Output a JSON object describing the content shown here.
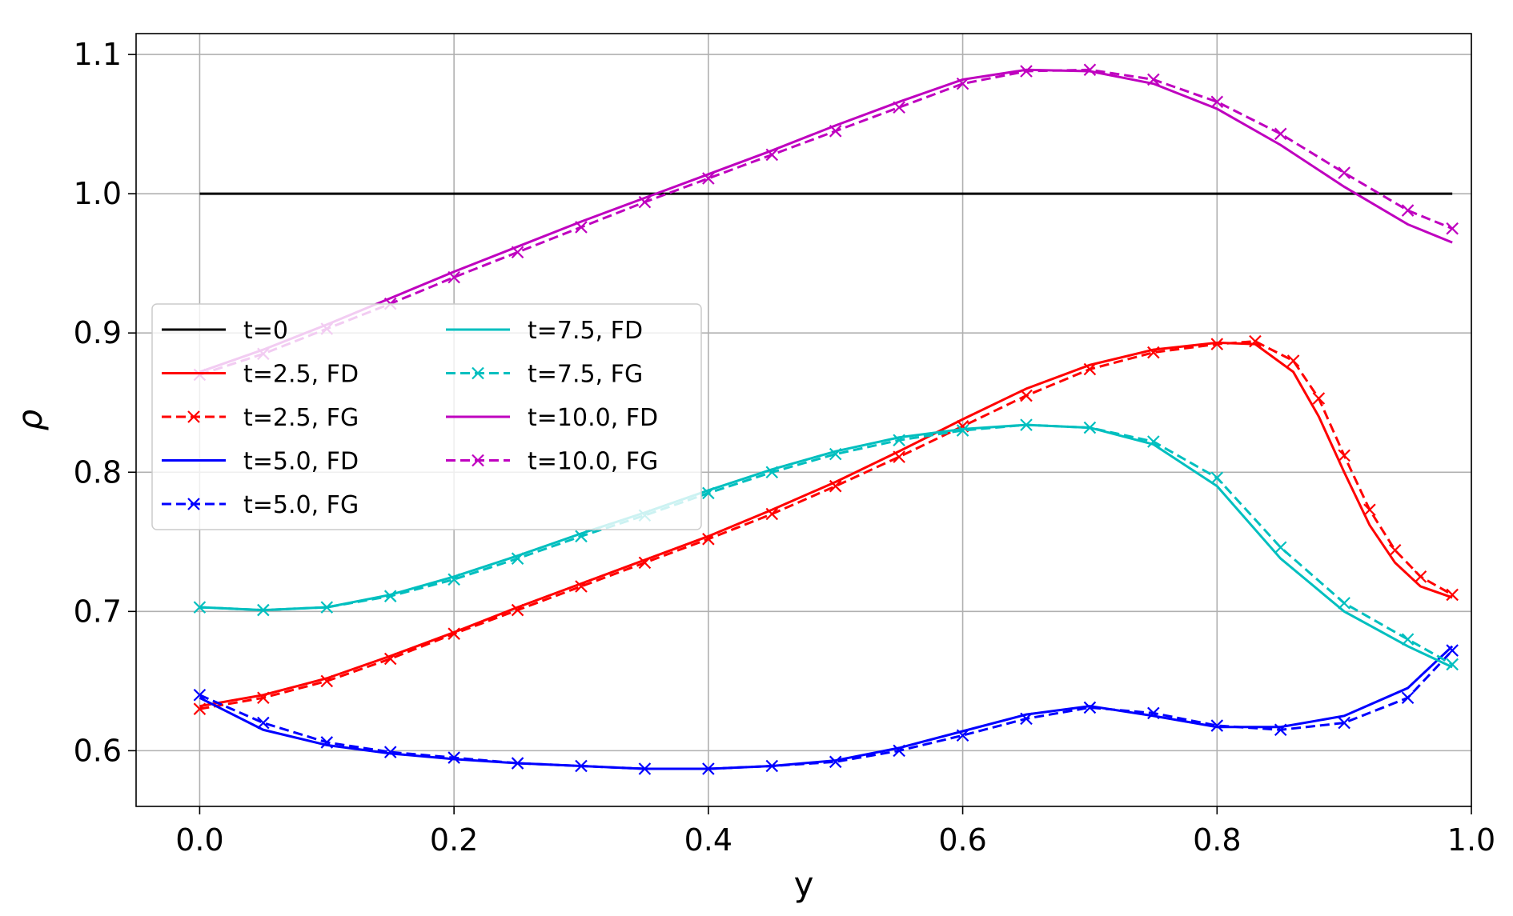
{
  "chart_data": {
    "type": "line",
    "title": "",
    "xlabel": "y",
    "ylabel": "ρ",
    "xlim": [
      -0.05,
      1.0
    ],
    "ylim": [
      0.56,
      1.115
    ],
    "xticks": [
      "0.0",
      "0.2",
      "0.4",
      "0.6",
      "0.8",
      "1.0"
    ],
    "yticks": [
      "0.6",
      "0.7",
      "0.8",
      "0.9",
      "1.0",
      "1.1"
    ],
    "grid": true,
    "legend_position": "center-left",
    "series": [
      {
        "name": "t=0",
        "color": "#000000",
        "style": "solid",
        "marker": "none",
        "x": [
          0.0,
          0.985
        ],
        "y": [
          1.0,
          1.0
        ]
      },
      {
        "name": "t=2.5, FD",
        "color": "#ff0000",
        "style": "solid",
        "marker": "none",
        "x": [
          0.0,
          0.05,
          0.1,
          0.15,
          0.2,
          0.25,
          0.3,
          0.35,
          0.4,
          0.45,
          0.5,
          0.55,
          0.6,
          0.65,
          0.7,
          0.75,
          0.8,
          0.83,
          0.86,
          0.88,
          0.9,
          0.92,
          0.94,
          0.96,
          0.985
        ],
        "y": [
          0.632,
          0.64,
          0.652,
          0.668,
          0.685,
          0.703,
          0.72,
          0.737,
          0.754,
          0.773,
          0.793,
          0.815,
          0.838,
          0.86,
          0.877,
          0.888,
          0.893,
          0.892,
          0.872,
          0.84,
          0.8,
          0.762,
          0.735,
          0.718,
          0.71
        ]
      },
      {
        "name": "t=2.5, FG",
        "color": "#ff0000",
        "style": "dashed",
        "marker": "x",
        "x": [
          0.0,
          0.05,
          0.1,
          0.15,
          0.2,
          0.25,
          0.3,
          0.35,
          0.4,
          0.45,
          0.5,
          0.55,
          0.6,
          0.65,
          0.7,
          0.75,
          0.8,
          0.83,
          0.86,
          0.88,
          0.9,
          0.92,
          0.94,
          0.96,
          0.985
        ],
        "y": [
          0.63,
          0.638,
          0.65,
          0.666,
          0.684,
          0.701,
          0.718,
          0.735,
          0.752,
          0.77,
          0.79,
          0.811,
          0.833,
          0.855,
          0.874,
          0.886,
          0.892,
          0.894,
          0.88,
          0.853,
          0.812,
          0.773,
          0.744,
          0.725,
          0.712
        ]
      },
      {
        "name": "t=5.0, FD",
        "color": "#0000ff",
        "style": "solid",
        "marker": "none",
        "x": [
          0.0,
          0.05,
          0.1,
          0.15,
          0.2,
          0.25,
          0.3,
          0.35,
          0.4,
          0.45,
          0.5,
          0.55,
          0.6,
          0.65,
          0.7,
          0.75,
          0.8,
          0.85,
          0.9,
          0.95,
          0.985
        ],
        "y": [
          0.638,
          0.615,
          0.604,
          0.598,
          0.594,
          0.591,
          0.589,
          0.587,
          0.587,
          0.589,
          0.593,
          0.602,
          0.614,
          0.626,
          0.632,
          0.625,
          0.617,
          0.617,
          0.625,
          0.645,
          0.675
        ]
      },
      {
        "name": "t=5.0, FG",
        "color": "#0000ff",
        "style": "dashed",
        "marker": "x",
        "x": [
          0.0,
          0.05,
          0.1,
          0.15,
          0.2,
          0.25,
          0.3,
          0.35,
          0.4,
          0.45,
          0.5,
          0.55,
          0.6,
          0.65,
          0.7,
          0.75,
          0.8,
          0.85,
          0.9,
          0.95,
          0.985
        ],
        "y": [
          0.64,
          0.62,
          0.606,
          0.599,
          0.595,
          0.591,
          0.589,
          0.587,
          0.587,
          0.589,
          0.592,
          0.6,
          0.611,
          0.623,
          0.631,
          0.627,
          0.618,
          0.615,
          0.62,
          0.638,
          0.672
        ]
      },
      {
        "name": "t=7.5, FD",
        "color": "#00bfbf",
        "style": "solid",
        "marker": "none",
        "x": [
          0.0,
          0.05,
          0.1,
          0.15,
          0.2,
          0.25,
          0.3,
          0.35,
          0.4,
          0.45,
          0.5,
          0.55,
          0.6,
          0.65,
          0.7,
          0.75,
          0.8,
          0.85,
          0.9,
          0.95,
          0.985
        ],
        "y": [
          0.703,
          0.701,
          0.703,
          0.712,
          0.725,
          0.74,
          0.756,
          0.771,
          0.787,
          0.802,
          0.815,
          0.825,
          0.831,
          0.834,
          0.832,
          0.82,
          0.79,
          0.738,
          0.7,
          0.675,
          0.66
        ]
      },
      {
        "name": "t=7.5, FG",
        "color": "#00bfbf",
        "style": "dashed",
        "marker": "x",
        "x": [
          0.0,
          0.05,
          0.1,
          0.15,
          0.2,
          0.25,
          0.3,
          0.35,
          0.4,
          0.45,
          0.5,
          0.55,
          0.6,
          0.65,
          0.7,
          0.75,
          0.8,
          0.85,
          0.9,
          0.95,
          0.985
        ],
        "y": [
          0.703,
          0.701,
          0.703,
          0.711,
          0.723,
          0.738,
          0.754,
          0.769,
          0.785,
          0.8,
          0.813,
          0.823,
          0.83,
          0.834,
          0.832,
          0.822,
          0.796,
          0.746,
          0.706,
          0.68,
          0.662
        ]
      },
      {
        "name": "t=10.0, FD",
        "color": "#bf00bf",
        "style": "solid",
        "marker": "none",
        "x": [
          0.0,
          0.05,
          0.1,
          0.15,
          0.2,
          0.25,
          0.3,
          0.35,
          0.4,
          0.45,
          0.5,
          0.55,
          0.6,
          0.65,
          0.7,
          0.75,
          0.8,
          0.85,
          0.9,
          0.95,
          0.985
        ],
        "y": [
          0.872,
          0.888,
          0.906,
          0.925,
          0.944,
          0.962,
          0.98,
          0.997,
          1.014,
          1.031,
          1.049,
          1.066,
          1.082,
          1.089,
          1.088,
          1.079,
          1.061,
          1.035,
          1.005,
          0.978,
          0.965
        ]
      },
      {
        "name": "t=10.0, FG",
        "color": "#bf00bf",
        "style": "dashed",
        "marker": "x",
        "x": [
          0.0,
          0.05,
          0.1,
          0.15,
          0.2,
          0.25,
          0.3,
          0.35,
          0.4,
          0.45,
          0.5,
          0.55,
          0.6,
          0.65,
          0.7,
          0.75,
          0.8,
          0.85,
          0.9,
          0.95,
          0.985
        ],
        "y": [
          0.87,
          0.885,
          0.903,
          0.921,
          0.94,
          0.958,
          0.976,
          0.994,
          1.011,
          1.028,
          1.045,
          1.062,
          1.079,
          1.088,
          1.089,
          1.082,
          1.066,
          1.043,
          1.015,
          0.988,
          0.975
        ]
      }
    ],
    "legend_columns": [
      [
        "t=0",
        "t=2.5, FD",
        "t=2.5, FG",
        "t=5.0, FD",
        "t=5.0, FG"
      ],
      [
        "t=7.5, FD",
        "t=7.5, FG",
        "t=10.0, FD",
        "t=10.0, FG"
      ]
    ]
  }
}
